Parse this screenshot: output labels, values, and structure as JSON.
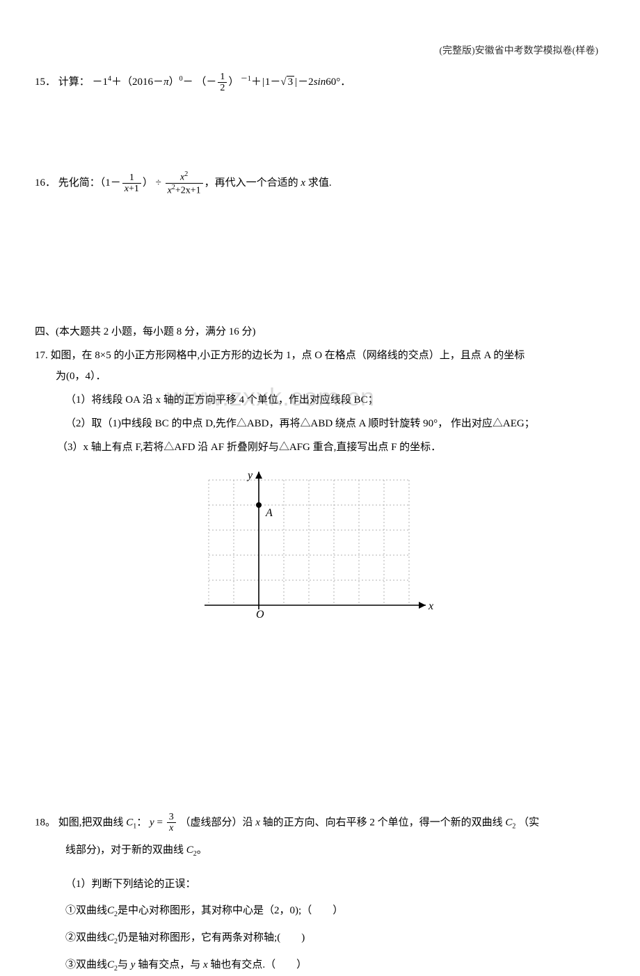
{
  "header": {
    "right_text": "(完整版)安徽省中考数学模拟卷(样卷)"
  },
  "watermark": "www.zxxk.com.cn",
  "problem15": {
    "number": "15．",
    "label": "计算：",
    "expr_prefix": "－1",
    "expr_sup1": "4",
    "expr_plus1": "＋（2016－",
    "pi": "π",
    "expr_paren_close_sup0": "）",
    "sup0": "0",
    "minus_open": "－ （－",
    "frac1_num": "1",
    "frac1_den": "2",
    "close_paren": "）",
    "sup_neg1": " －1",
    "plus_abs": "＋",
    "abs_open": "|",
    "abs_inner_1": "1－",
    "sqrt_label": "√",
    "sqrt_val": "3",
    "abs_close": "|",
    "minus_2sin": "－2",
    "sin_text": "sin",
    "sin_arg": "60°．"
  },
  "problem16": {
    "number": "16．",
    "label": "先化简：（1－",
    "frac1_num": "1",
    "frac1_den_x": "x",
    "frac1_den_plus1": "+1",
    "close_div": "） ÷ ",
    "frac2_num_x": "x",
    "frac2_num_sup": "2",
    "frac2_den": "x²+2x+1",
    "frac2_den_x1": "x",
    "frac2_den_sup": "2",
    "frac2_den_rest": "+2x+1",
    "tail": "，再代入一个合适的 ",
    "var_x": "x",
    "tail2": " 求值."
  },
  "section4": "四、(本大题共 2 小题，每小题 8 分，满分 16 分)",
  "problem17": {
    "line1": "17. 如图，在 8×5 的小正方形网格中,小正方形的边长为 1，点 O 在格点（网络线的交点）上，且点 A 的坐标",
    "line1b": "为(0，4）．",
    "sub1": "（1）将线段 OA 沿 x 轴的正方向平移 4 个单位，作出对应线段 BC；",
    "sub2": "（2）取（1)中线段 BC 的中点 D,先作△ABD，再将△ABD 绕点 A 顺时针旋转 90°， 作出对应△AEG；",
    "sub3": "（3）x 轴上有点 F,若将△AFD 沿 AF 折叠刚好与△AFG 重合,直接写出点 F 的坐标．"
  },
  "grid": {
    "cols": 8,
    "rows": 5,
    "cell_size": 36,
    "origin_col": 2,
    "origin_row": 5,
    "point_A_label": "A",
    "origin_label": "O",
    "x_label": "x",
    "y_label": "y",
    "grid_color": "#b0b0b0",
    "axis_color": "#000000",
    "point_color": "#000000"
  },
  "problem18": {
    "line1_a": "18。 如图,把双曲线",
    "C1": "C",
    "C1_sub": "1",
    "colon_y": "：",
    "y_eq": "y",
    "eq": " = ",
    "frac_num": "3",
    "frac_den": "x",
    "line1_b": "（虚线部分）沿 ",
    "var_x": "x",
    "line1_c": " 轴的正方向、向右平移 2 个单位，得一个新的双曲线",
    "C2": "C",
    "C2_sub": "2",
    "line1_d": "（实",
    "line2": "线部分)，对于新的双曲线",
    "line2_end": "。",
    "sub1_label": "（1）判断下列结论的正误：",
    "item1_a": "①双曲线",
    "item1_b": "是中心对称图形，其对称中心是（2，0);（　　）",
    "item2_a": "②双曲线",
    "item2_b": "仍是轴对称图形，它有两条对称轴;(　　)",
    "item3_a": "③双曲线",
    "item3_b": "与 ",
    "var_y": "y",
    "item3_c": " 轴有交点，与 ",
    "item3_d": " 轴也有交点.（　　）"
  }
}
